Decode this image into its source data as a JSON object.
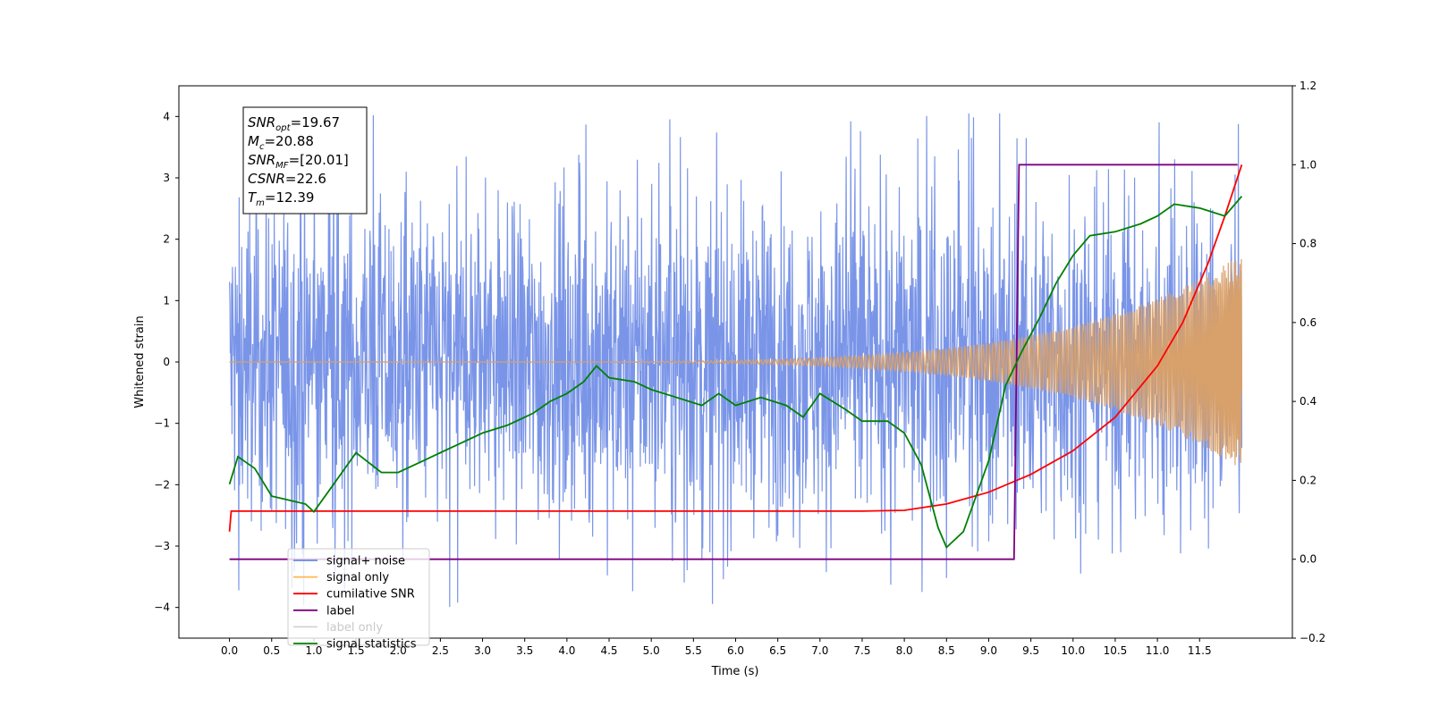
{
  "chart_data": {
    "type": "line",
    "xlabel": "Time (s)",
    "ylabel": "Whitened strain",
    "xlim": [
      -0.6,
      12.6
    ],
    "ylim": [
      -4.5,
      4.5
    ],
    "y2lim": [
      -0.2,
      1.2
    ],
    "x_ticks": [
      0.0,
      0.5,
      1.0,
      1.5,
      2.0,
      2.5,
      3.0,
      3.5,
      4.0,
      4.5,
      5.0,
      5.5,
      6.0,
      6.5,
      7.0,
      7.5,
      8.0,
      8.5,
      9.0,
      9.5,
      10.0,
      10.5,
      11.0,
      11.5
    ],
    "x_tick_labels": [
      "0.0",
      "0.5",
      "1.0",
      "1.5",
      "2.0",
      "2.5",
      "3.0",
      "3.5",
      "4.0",
      "4.5",
      "5.0",
      "5.5",
      "6.0",
      "6.5",
      "7.0",
      "7.5",
      "8.0",
      "8.5",
      "9.0",
      "9.5",
      "10.0",
      "10.5",
      "11.0",
      "11.5"
    ],
    "y_ticks": [
      -4,
      -3,
      -2,
      -1,
      0,
      1,
      2,
      3,
      4
    ],
    "y_tick_labels": [
      "−4",
      "−3",
      "−2",
      "−1",
      "0",
      "1",
      "2",
      "3",
      "4"
    ],
    "y2_ticks": [
      -0.2,
      0.0,
      0.2,
      0.4,
      0.6,
      0.8,
      1.0,
      1.2
    ],
    "y2_tick_labels": [
      "−0.2",
      "0.0",
      "0.2",
      "0.4",
      "0.6",
      "0.8",
      "1.0",
      "1.2"
    ],
    "grid": false,
    "legend_position": "lower-left",
    "annotation": {
      "lines": [
        {
          "sym": "SNR",
          "sub": "opt",
          "val": "=19.67"
        },
        {
          "sym": "M",
          "sub": "c",
          "val": "=20.88"
        },
        {
          "sym": "SNR",
          "sub": "MF",
          "val": "=[20.01]"
        },
        {
          "sym": "CSNR",
          "sub": "",
          "val": "=22.6"
        },
        {
          "sym": "T",
          "sub": "m",
          "val": "=12.39"
        }
      ]
    },
    "series": [
      {
        "name": "signal+ noise",
        "axis": "left",
        "color": "#6b8ae6",
        "description_kind": "noise",
        "t_range": [
          0.0,
          12.0
        ],
        "base_amplitude": 1.6,
        "peak_range": [
          -4.1,
          4.1
        ]
      },
      {
        "name": "signal only",
        "axis": "left",
        "color": "#ffb74d",
        "description_kind": "chirp",
        "t_range": [
          0.0,
          12.0
        ],
        "amplitude_start": 0.0,
        "amplitude_end": 1.75
      },
      {
        "name": "cumilative SNR",
        "axis": "right",
        "color": "#ff0000",
        "t": [
          0.0,
          0.02,
          1.0,
          2.0,
          3.0,
          4.0,
          5.0,
          6.0,
          7.0,
          7.5,
          8.0,
          8.5,
          9.0,
          9.5,
          10.0,
          10.5,
          11.0,
          11.3,
          11.6,
          11.8,
          12.0
        ],
        "y": [
          0.07,
          0.122,
          0.122,
          0.122,
          0.122,
          0.122,
          0.122,
          0.122,
          0.122,
          0.122,
          0.124,
          0.14,
          0.17,
          0.215,
          0.275,
          0.36,
          0.49,
          0.6,
          0.75,
          0.87,
          1.0
        ]
      },
      {
        "name": "label",
        "axis": "right",
        "color": "#800080",
        "t": [
          0.0,
          9.3,
          9.36,
          11.95
        ],
        "y": [
          0.0,
          0.0,
          1.0,
          1.0
        ]
      },
      {
        "name": "label only",
        "axis": "right",
        "color": "#d3d3d3",
        "t": [],
        "y": []
      },
      {
        "name": "signal statistics",
        "axis": "right",
        "color": "#008000",
        "t": [
          0.0,
          0.1,
          0.3,
          0.5,
          0.7,
          0.9,
          1.0,
          1.2,
          1.5,
          1.8,
          2.0,
          2.3,
          2.5,
          2.8,
          3.0,
          3.3,
          3.6,
          3.8,
          4.0,
          4.2,
          4.35,
          4.5,
          4.8,
          5.0,
          5.3,
          5.6,
          5.8,
          6.0,
          6.3,
          6.6,
          6.8,
          7.0,
          7.3,
          7.5,
          7.8,
          8.0,
          8.2,
          8.4,
          8.5,
          8.7,
          9.0,
          9.2,
          9.4,
          9.6,
          9.8,
          10.0,
          10.2,
          10.5,
          10.8,
          11.0,
          11.2,
          11.5,
          11.8,
          12.0
        ],
        "y": [
          0.19,
          0.26,
          0.23,
          0.16,
          0.15,
          0.14,
          0.12,
          0.18,
          0.27,
          0.22,
          0.22,
          0.25,
          0.27,
          0.3,
          0.32,
          0.34,
          0.37,
          0.4,
          0.42,
          0.45,
          0.49,
          0.46,
          0.45,
          0.43,
          0.41,
          0.39,
          0.42,
          0.39,
          0.41,
          0.39,
          0.36,
          0.42,
          0.38,
          0.35,
          0.35,
          0.32,
          0.24,
          0.08,
          0.03,
          0.07,
          0.25,
          0.44,
          0.53,
          0.61,
          0.7,
          0.77,
          0.82,
          0.83,
          0.85,
          0.87,
          0.9,
          0.89,
          0.87,
          0.92
        ]
      }
    ]
  }
}
